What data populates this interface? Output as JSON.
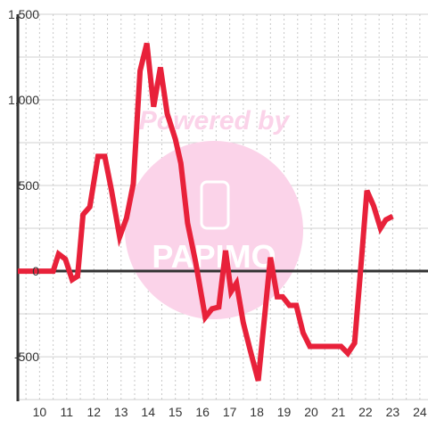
{
  "watermark": {
    "text": "Powered by",
    "logo_text": "PAPIMO",
    "color": "#fbd3e9"
  },
  "chart_data": {
    "type": "line",
    "title": "",
    "xlabel": "",
    "ylabel": "",
    "xlim": [
      9.2,
      24.3
    ],
    "ylim": [
      -760,
      1500
    ],
    "x_ticks": [
      "10",
      "11",
      "12",
      "13",
      "14",
      "15",
      "16",
      "17",
      "18",
      "19",
      "20",
      "21",
      "22",
      "23",
      "24"
    ],
    "y_ticks": [
      "1,500",
      "1,000",
      "500",
      "0",
      "-500"
    ],
    "y_tick_values": [
      1500,
      1000,
      500,
      0,
      -500
    ],
    "x_tick_values": [
      10,
      11,
      12,
      13,
      14,
      15,
      16,
      17,
      18,
      19,
      20,
      21,
      22,
      23,
      24
    ],
    "grid": true,
    "legend": "none",
    "line_color": "#e8213a",
    "series": [
      {
        "x": [
          9.2,
          10.5,
          10.7,
          10.95,
          11.2,
          11.4,
          11.6,
          11.85,
          12.15,
          12.4,
          12.65,
          12.95,
          13.2,
          13.45,
          13.7,
          13.95,
          14.2,
          14.45,
          14.7,
          15.0,
          15.2,
          15.45,
          15.75,
          16.1,
          16.35,
          16.6,
          16.85,
          17.05,
          17.25,
          17.5,
          17.75,
          18.05,
          18.5,
          18.75,
          18.95,
          19.2,
          19.45,
          19.7,
          19.95,
          20.2,
          20.5,
          20.8,
          21.1,
          21.35,
          21.6,
          21.85,
          22.05,
          22.3,
          22.55,
          22.75,
          23.0
        ],
        "y": [
          0,
          0,
          100,
          70,
          -50,
          -30,
          330,
          375,
          670,
          670,
          470,
          200,
          310,
          510,
          1170,
          1330,
          960,
          1190,
          920,
          770,
          630,
          280,
          50,
          -270,
          -220,
          -210,
          120,
          -120,
          -70,
          -300,
          -460,
          -640,
          80,
          -150,
          -150,
          -200,
          -200,
          -360,
          -440,
          -440,
          -440,
          -440,
          -440,
          -480,
          -420,
          70,
          470,
          380,
          250,
          300,
          320
        ]
      }
    ]
  }
}
